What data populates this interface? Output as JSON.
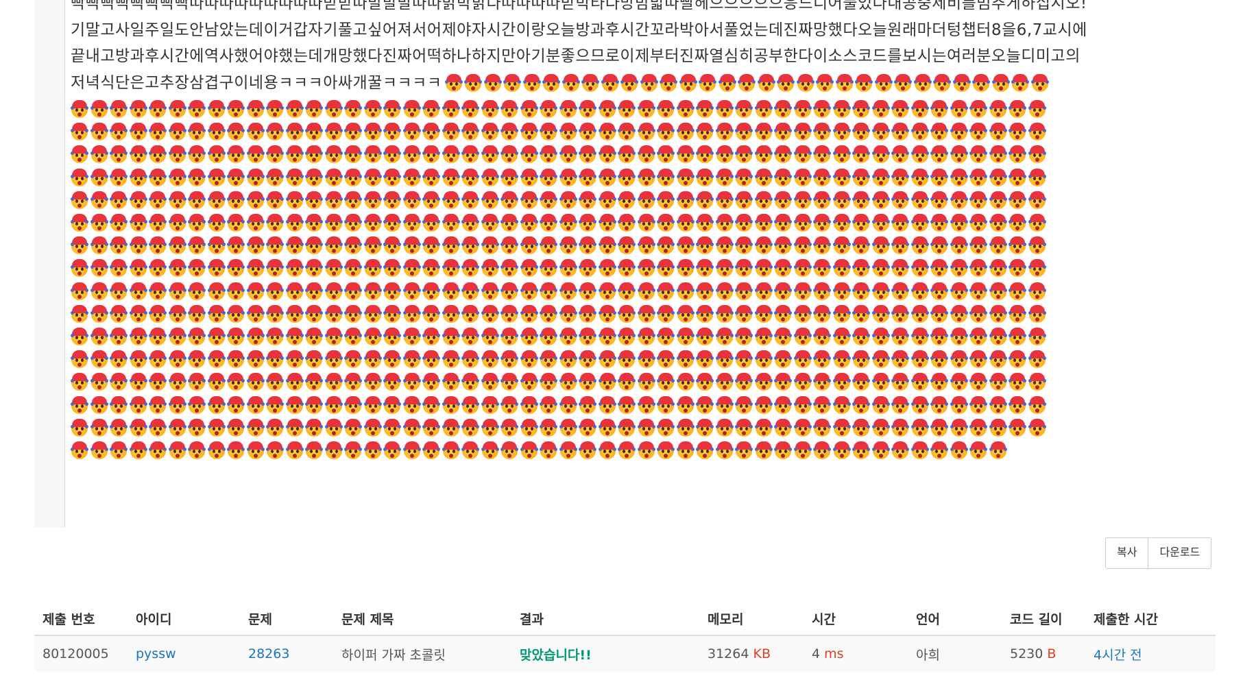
{
  "code": {
    "lines": [
      "빡빡빡빡빡빡빡빡따따따따따따따따따받받따발발발따따밝박밝다따따따따받박타다망밤밟따빨헤으으으으으응드디어풀었다내공중제비를멈추게하십시오!",
      "기말고사일주일도안남았는데이거갑자기풀고싶어져서어제야자시간이랑오늘방과후시간꼬라박아서풀었는데진짜망했다오늘원래마더텅챕터8을6,7교시에",
      "끝내고방과후시간에역사했어야했는데개망했다진짜어떡하나하지만아기분좋으므로이제부터진짜열심히공부한다이소스코드를보시는여러분오늘디미고의",
      "저녁식단은고추장삼겹구이네용ㅋㅋㅋ아싸개꿀ㅋㅋㅋㅋ"
    ],
    "emoji_name": "hot-face-emoji-icon",
    "emoji_count_first_line": 31,
    "emoji_rows": 16,
    "emoji_per_row": 50,
    "emoji_last_row": 48
  },
  "actions": {
    "copy_label": "복사",
    "download_label": "다운로드"
  },
  "submission_table": {
    "headers": [
      "제출 번호",
      "아이디",
      "문제",
      "문제 제목",
      "결과",
      "메모리",
      "시간",
      "언어",
      "코드 길이",
      "제출한 시간"
    ],
    "row": {
      "submission_id": "80120005",
      "user_id": "pyssw",
      "problem_id": "28263",
      "problem_title": "하이퍼 가짜 초콜릿",
      "result": "맞았습니다!!",
      "memory_value": "31264",
      "memory_unit": "KB",
      "time_value": "4",
      "time_unit": "ms",
      "language": "아희",
      "code_length_value": "5230",
      "code_length_unit": "B",
      "submitted_at": "4시간 전"
    }
  },
  "colors": {
    "link": "#1a73c4",
    "accepted": "#009874",
    "unit": "#dd4124"
  }
}
